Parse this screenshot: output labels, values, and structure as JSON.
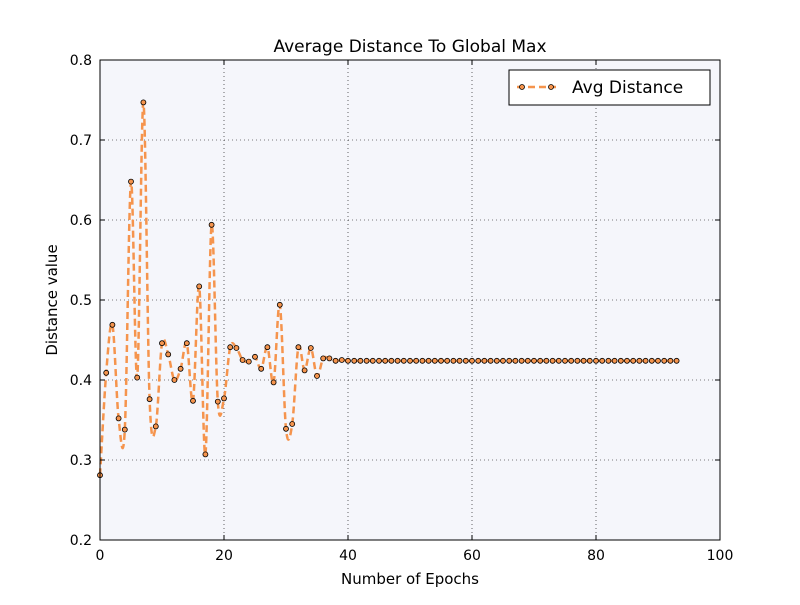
{
  "colors": {
    "plot_background": "#f5f6fb",
    "line": "#f5944d",
    "marker_fill": "#f5944d",
    "marker_edge": "#000000",
    "grid": "#000000"
  },
  "chart_data": {
    "type": "line",
    "title": "Average Distance To Global Max",
    "xlabel": "Number of Epochs",
    "ylabel": "Distance value",
    "xlim": [
      0,
      100
    ],
    "ylim": [
      0.2,
      0.8
    ],
    "xticks": [
      0,
      20,
      40,
      60,
      80,
      100
    ],
    "xtick_labels": [
      "0",
      "20",
      "40",
      "60",
      "80",
      "100"
    ],
    "yticks": [
      0.2,
      0.3,
      0.4,
      0.5,
      0.6,
      0.7,
      0.8
    ],
    "ytick_labels": [
      "0.2",
      "0.3",
      "0.4",
      "0.5",
      "0.6",
      "0.7",
      "0.8"
    ],
    "grid": true,
    "grid_style": "dotted",
    "legend_position": "top-right",
    "series": [
      {
        "name": "Avg Distance",
        "line_style": "dashed",
        "marker": "circle",
        "x": [
          0,
          1,
          2,
          3,
          4,
          5,
          6,
          7,
          8,
          9,
          10,
          11,
          12,
          13,
          14,
          15,
          16,
          17,
          18,
          19,
          20,
          21,
          22,
          23,
          24,
          25,
          26,
          27,
          28,
          29,
          30,
          31,
          32,
          33,
          34,
          35,
          36,
          37,
          38,
          39,
          40,
          41,
          42,
          43,
          44,
          45,
          46,
          47,
          48,
          49,
          50,
          51,
          52,
          53,
          54,
          55,
          56,
          57,
          58,
          59,
          60,
          61,
          62,
          63,
          64,
          65,
          66,
          67,
          68,
          69,
          70,
          71,
          72,
          73,
          74,
          75,
          76,
          77,
          78,
          79,
          80,
          81,
          82,
          83,
          84,
          85,
          86,
          87,
          88,
          89,
          90,
          91,
          92,
          93
        ],
        "y": [
          0.281,
          0.409,
          0.469,
          0.352,
          0.338,
          0.648,
          0.403,
          0.747,
          0.376,
          0.342,
          0.446,
          0.432,
          0.4,
          0.414,
          0.446,
          0.374,
          0.517,
          0.307,
          0.594,
          0.373,
          0.377,
          0.441,
          0.44,
          0.425,
          0.423,
          0.429,
          0.414,
          0.441,
          0.397,
          0.494,
          0.339,
          0.345,
          0.441,
          0.412,
          0.44,
          0.405,
          0.427,
          0.427,
          0.424,
          0.425,
          0.424,
          0.424,
          0.424,
          0.424,
          0.424,
          0.424,
          0.424,
          0.424,
          0.424,
          0.424,
          0.424,
          0.424,
          0.424,
          0.424,
          0.424,
          0.424,
          0.424,
          0.424,
          0.424,
          0.424,
          0.424,
          0.424,
          0.424,
          0.424,
          0.424,
          0.424,
          0.424,
          0.424,
          0.424,
          0.424,
          0.424,
          0.424,
          0.424,
          0.424,
          0.424,
          0.424,
          0.424,
          0.424,
          0.424,
          0.424,
          0.424,
          0.424,
          0.424,
          0.424,
          0.424,
          0.424,
          0.424,
          0.424,
          0.424,
          0.424,
          0.424,
          0.424,
          0.424,
          0.424
        ]
      }
    ]
  }
}
